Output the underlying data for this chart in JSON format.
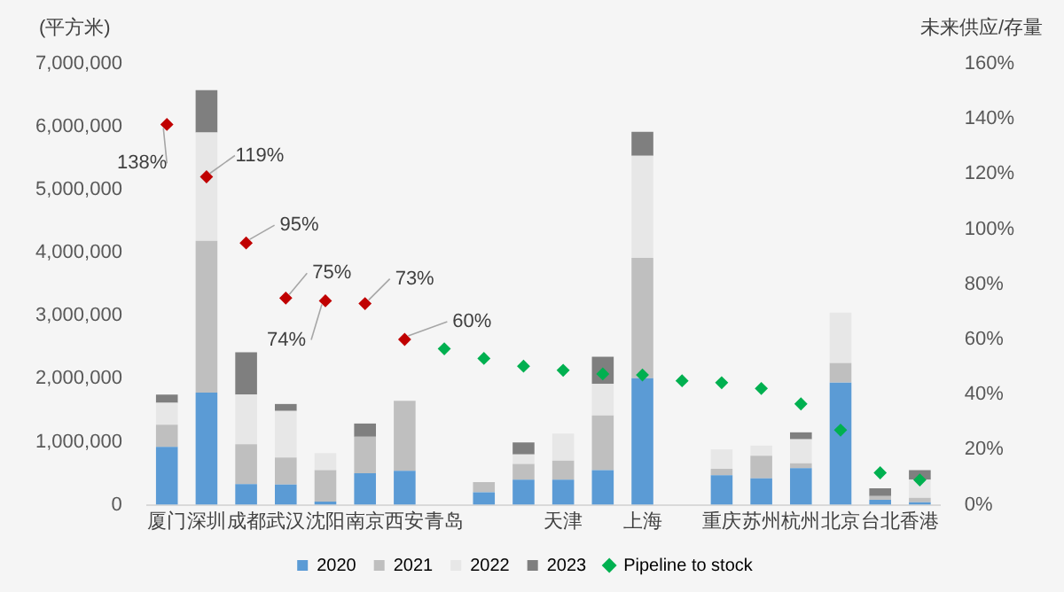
{
  "chart_data": {
    "type": "bar",
    "stacked": true,
    "ylabel": "(平方米)",
    "y2label": "未来供应/存量",
    "categories": [
      "厦门",
      "深圳",
      "成都",
      "武汉",
      "沈阳",
      "南京",
      "西安",
      "青岛",
      null,
      null,
      "天津",
      null,
      "上海",
      null,
      "重庆",
      "苏州",
      "杭州",
      "北京",
      "台北",
      "香港"
    ],
    "series": [
      {
        "name": "2020",
        "color": "#5b9bd5",
        "values": [
          920000,
          1780000,
          330000,
          320000,
          50000,
          500000,
          540000,
          null,
          200000,
          400000,
          400000,
          550000,
          2010000,
          null,
          470000,
          420000,
          580000,
          1940000,
          80000,
          40000
        ]
      },
      {
        "name": "2021",
        "color": "#bfbfbf",
        "values": [
          350000,
          2410000,
          630000,
          430000,
          500000,
          580000,
          1110000,
          null,
          160000,
          250000,
          300000,
          870000,
          1910000,
          null,
          100000,
          360000,
          80000,
          310000,
          60000,
          70000
        ]
      },
      {
        "name": "2022",
        "color": "#e7e7e7",
        "values": [
          350000,
          1720000,
          790000,
          740000,
          270000,
          0,
          0,
          null,
          0,
          150000,
          430000,
          500000,
          1620000,
          null,
          310000,
          160000,
          380000,
          800000,
          0,
          290000
        ]
      },
      {
        "name": "2023",
        "color": "#7f7f7f",
        "values": [
          130000,
          670000,
          670000,
          110000,
          0,
          210000,
          0,
          null,
          0,
          190000,
          0,
          430000,
          380000,
          null,
          0,
          0,
          110000,
          0,
          120000,
          150000
        ]
      },
      {
        "name": "Pipeline to stock",
        "type": "scatter",
        "axis": "y2",
        "color": "#00b050",
        "colors": [
          "#c00000",
          "#c00000",
          "#c00000",
          "#c00000",
          "#c00000",
          "#c00000",
          "#c00000",
          "#00b050",
          "#00b050",
          "#00b050",
          "#00b050",
          "#00b050",
          "#00b050",
          "#00b050",
          "#00b050",
          "#00b050",
          "#00b050",
          "#00b050",
          "#00b050",
          "#00b050"
        ],
        "values": [
          138,
          119,
          95,
          75,
          74,
          73,
          60,
          56.6,
          53.1,
          50.3,
          48.8,
          47.5,
          47.1,
          45.0,
          44.3,
          42.2,
          36.6,
          27.1,
          11.6,
          9.0
        ],
        "value_labels": [
          "138%",
          "119%",
          "95%",
          "75%",
          "74%",
          "73%",
          "60%",
          null,
          null,
          null,
          null,
          null,
          null,
          null,
          null,
          null,
          null,
          null,
          null,
          null
        ]
      }
    ],
    "ylim": [
      0,
      7000000
    ],
    "yticks": [
      {
        "value": 0,
        "label": "0"
      },
      {
        "value": 1000000,
        "label": "1,000,000"
      },
      {
        "value": 2000000,
        "label": "2,000,000"
      },
      {
        "value": 3000000,
        "label": "3,000,000"
      },
      {
        "value": 4000000,
        "label": "4,000,000"
      },
      {
        "value": 5000000,
        "label": "5,000,000"
      },
      {
        "value": 6000000,
        "label": "6,000,000"
      },
      {
        "value": 7000000,
        "label": "7,000,000"
      }
    ],
    "y2lim": [
      0,
      160
    ],
    "y2ticks": [
      {
        "value": 0,
        "label": "0%"
      },
      {
        "value": 20,
        "label": "20%"
      },
      {
        "value": 40,
        "label": "40%"
      },
      {
        "value": 60,
        "label": "60%"
      },
      {
        "value": 80,
        "label": "80%"
      },
      {
        "value": 100,
        "label": "100%"
      },
      {
        "value": 120,
        "label": "120%"
      },
      {
        "value": 140,
        "label": "140%"
      },
      {
        "value": 160,
        "label": "160%"
      }
    ],
    "grid": false,
    "legend": "bottom",
    "marker": "diamond"
  }
}
